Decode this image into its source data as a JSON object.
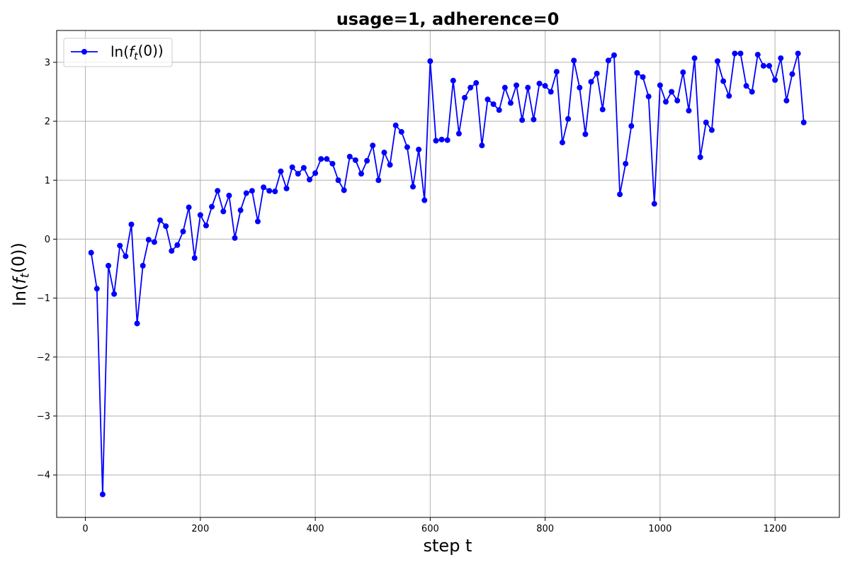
{
  "chart_data": {
    "type": "line",
    "title": "usage=1, adherence=0",
    "xlabel": "step t",
    "ylabel": "ln(f_t(0))",
    "xlim": [
      -50,
      1312
    ],
    "ylim": [
      -4.72,
      3.54
    ],
    "xticks": [
      0,
      200,
      400,
      600,
      800,
      1000,
      1200
    ],
    "yticks": [
      -4,
      -3,
      -2,
      -1,
      0,
      1,
      2,
      3
    ],
    "grid": true,
    "legend_position": "top-left",
    "series": [
      {
        "name": "ln(f_t(0))",
        "color": "#0000ff",
        "marker": "circle",
        "x": [
          10,
          20,
          30,
          40,
          50,
          60,
          70,
          80,
          90,
          100,
          110,
          120,
          130,
          140,
          150,
          160,
          170,
          180,
          190,
          200,
          210,
          220,
          230,
          240,
          250,
          260,
          270,
          280,
          290,
          300,
          310,
          320,
          330,
          340,
          350,
          360,
          370,
          380,
          390,
          400,
          410,
          420,
          430,
          440,
          450,
          460,
          470,
          480,
          490,
          500,
          510,
          520,
          530,
          540,
          550,
          560,
          570,
          580,
          590,
          600,
          610,
          620,
          630,
          640,
          650,
          660,
          670,
          680,
          690,
          700,
          710,
          720,
          730,
          740,
          750,
          760,
          770,
          780,
          790,
          800,
          810,
          820,
          830,
          840,
          850,
          860,
          870,
          880,
          890,
          900,
          910,
          920,
          930,
          940,
          950,
          960,
          970,
          980,
          990,
          1000,
          1010,
          1020,
          1030,
          1040,
          1050,
          1060,
          1070,
          1080,
          1090,
          1100,
          1110,
          1120,
          1130,
          1140,
          1150,
          1160,
          1170,
          1180,
          1190,
          1200,
          1210,
          1220,
          1230,
          1240,
          1250
        ],
        "y": [
          -0.23,
          -0.84,
          -4.33,
          -0.45,
          -0.93,
          -0.11,
          -0.29,
          0.25,
          -1.43,
          -0.45,
          -0.01,
          -0.05,
          0.32,
          0.22,
          -0.2,
          -0.1,
          0.13,
          0.54,
          -0.32,
          0.41,
          0.23,
          0.55,
          0.82,
          0.47,
          0.74,
          0.02,
          0.49,
          0.78,
          0.82,
          0.3,
          0.88,
          0.82,
          0.81,
          1.15,
          0.86,
          1.22,
          1.11,
          1.21,
          1.01,
          1.12,
          1.36,
          1.36,
          1.28,
          1.0,
          0.83,
          1.4,
          1.34,
          1.11,
          1.33,
          1.59,
          1.0,
          1.47,
          1.26,
          1.93,
          1.82,
          1.56,
          0.89,
          1.52,
          0.66,
          3.02,
          1.67,
          1.69,
          1.68,
          2.69,
          1.79,
          2.4,
          2.57,
          2.65,
          1.59,
          2.37,
          2.29,
          2.19,
          2.57,
          2.31,
          2.61,
          2.02,
          2.57,
          2.03,
          2.64,
          2.6,
          2.5,
          2.84,
          1.64,
          2.04,
          3.03,
          2.57,
          1.78,
          2.67,
          2.81,
          2.2,
          3.03,
          3.12,
          0.76,
          1.28,
          1.92,
          2.82,
          2.75,
          2.42,
          0.6,
          2.61,
          2.33,
          2.5,
          2.35,
          2.83,
          2.18,
          3.07,
          1.39,
          1.98,
          1.85,
          3.02,
          2.68,
          2.43,
          3.15,
          3.15,
          2.6,
          2.5,
          3.13,
          2.94,
          2.94,
          2.7,
          3.07,
          2.35,
          2.8,
          3.15,
          1.98
        ]
      }
    ]
  }
}
